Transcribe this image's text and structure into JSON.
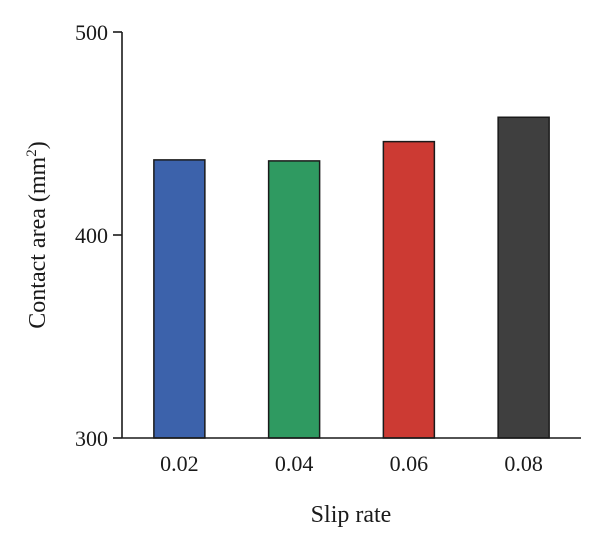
{
  "chart_data": {
    "type": "bar",
    "title": "",
    "xlabel": "Slip rate",
    "ylabel_text": "Contact area (mm",
    "ylabel_superscript": "2",
    "ylabel_close": ")",
    "categories": [
      "0.02",
      "0.04",
      "0.06",
      "0.08"
    ],
    "values": [
      437,
      436.5,
      446,
      458
    ],
    "colors": [
      "#3c62ab",
      "#2f9a61",
      "#cc3a33",
      "#3f3f3f"
    ],
    "ylim": [
      300,
      500
    ],
    "yticks": [
      300,
      400,
      500
    ],
    "grid": false,
    "legend": "none"
  }
}
